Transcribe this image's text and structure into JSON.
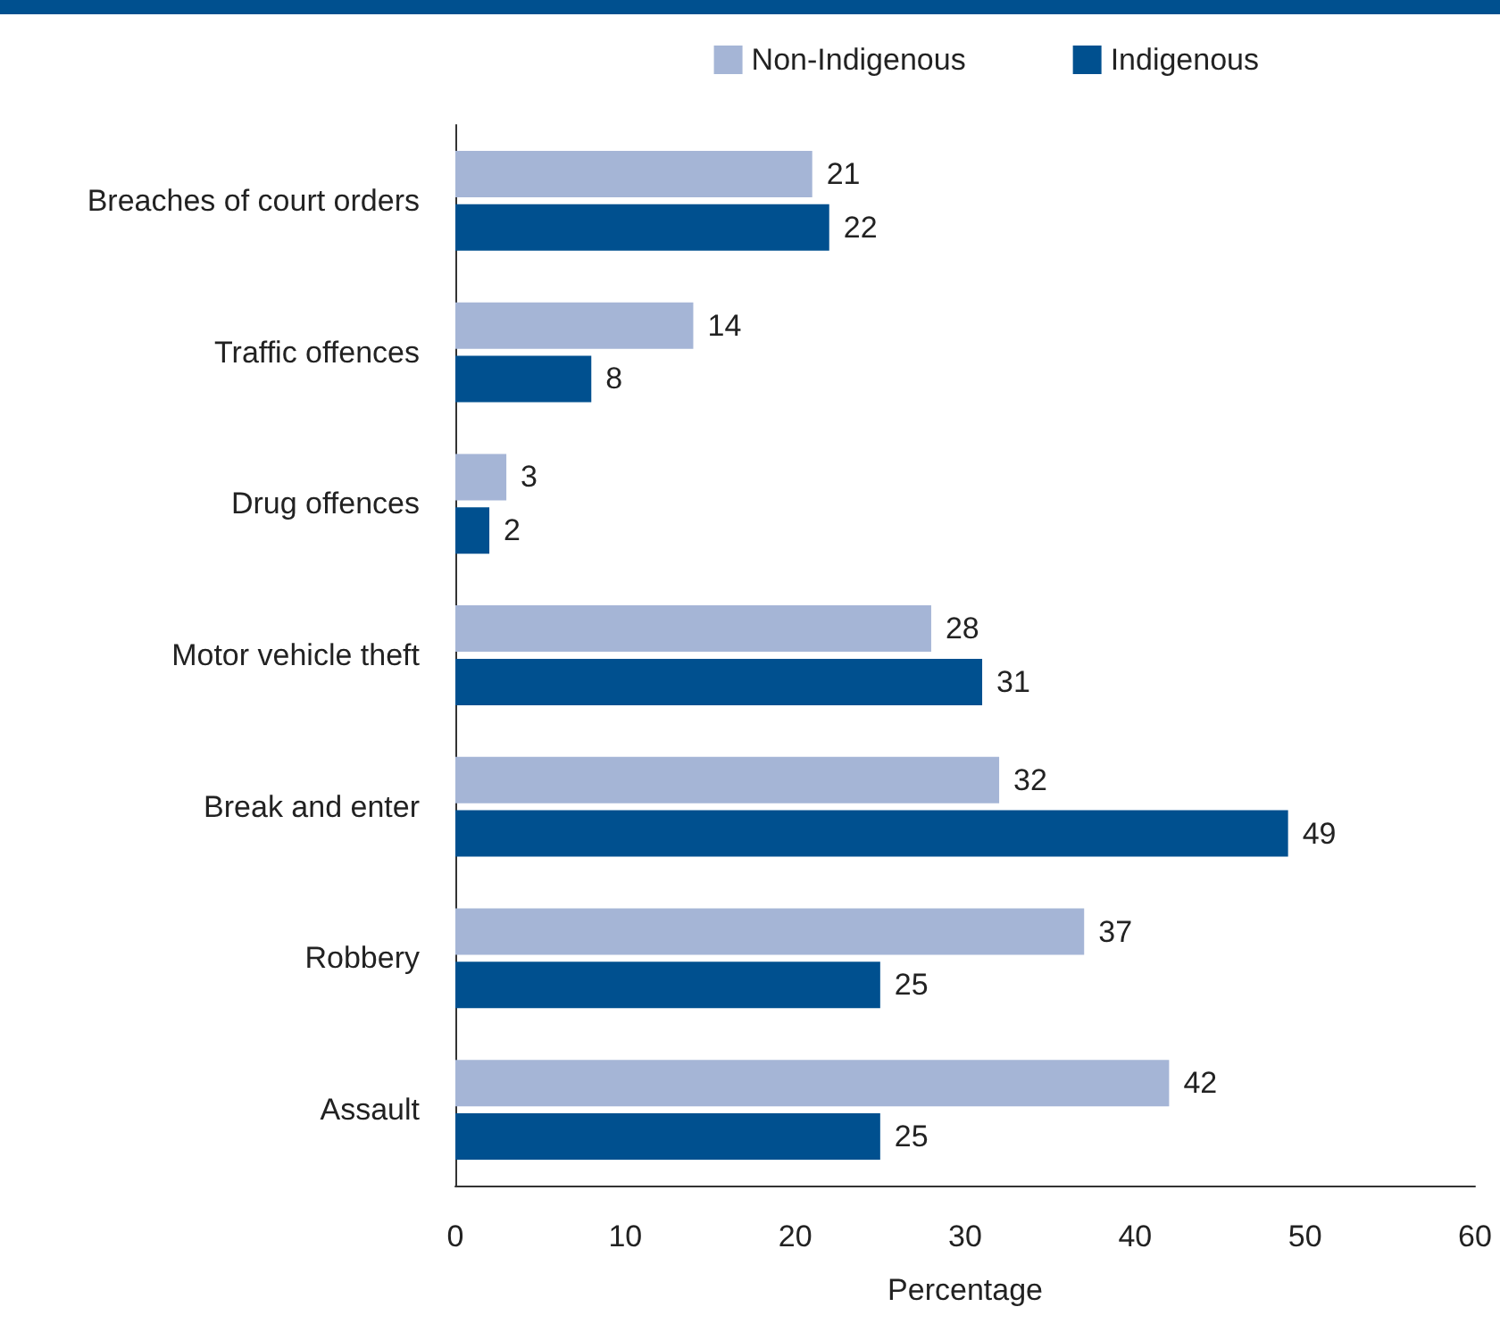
{
  "chart_data": {
    "type": "bar",
    "orientation": "horizontal",
    "xlabel": "Percentage",
    "categories": [
      "Breaches of court orders",
      "Traffic offences",
      "Drug offences",
      "Motor vehicle theft",
      "Break and enter",
      "Robbery",
      "Assault"
    ],
    "series": [
      {
        "name": "Non-Indigenous",
        "color": "#a5b5d6",
        "values": [
          21,
          14,
          3,
          28,
          32,
          37,
          42
        ]
      },
      {
        "name": "Indigenous",
        "color": "#00508f",
        "values": [
          22,
          8,
          2,
          31,
          49,
          25,
          25
        ]
      }
    ],
    "xlim": [
      0,
      60
    ],
    "xticks": [
      0,
      10,
      20,
      30,
      40,
      50,
      60
    ],
    "data_labels": true,
    "legend": "top right",
    "grid": false
  }
}
